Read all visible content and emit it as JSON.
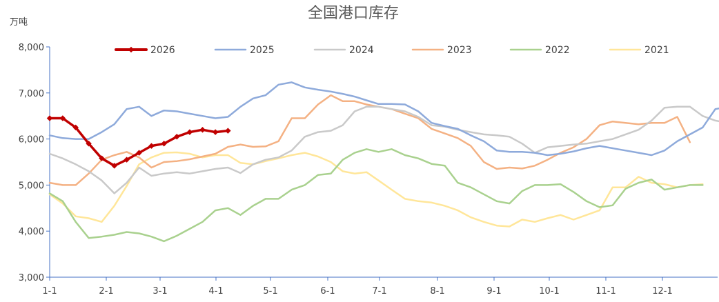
{
  "chart_data": {
    "type": "line",
    "title": "全国港口库存",
    "unit_label": "万吨",
    "ylim": [
      3000,
      8000
    ],
    "y_ticks": [
      {
        "value": 3000,
        "label": "3,000"
      },
      {
        "value": 4000,
        "label": "4,000"
      },
      {
        "value": 5000,
        "label": "5,000"
      },
      {
        "value": 6000,
        "label": "6,000"
      },
      {
        "value": 7000,
        "label": "7,000"
      },
      {
        "value": 8000,
        "label": "8,000"
      }
    ],
    "x_ticks": [
      "1-1",
      "2-1",
      "3-1",
      "4-1",
      "5-1",
      "6-1",
      "7-1",
      "8-1",
      "9-1",
      "10-1",
      "11-1",
      "12-1"
    ],
    "grid": false,
    "legend_position": "top",
    "series": [
      {
        "name": "2026",
        "color": "#c00000",
        "markers": true,
        "values": [
          6450,
          6450,
          6250,
          5900,
          5580,
          5420,
          5550,
          5700,
          5850,
          5900,
          6050,
          6150,
          6200,
          6150,
          6180
        ]
      },
      {
        "name": "2025",
        "color": "#8eaadb",
        "values": [
          6080,
          6020,
          6000,
          6000,
          6150,
          6320,
          6650,
          6700,
          6500,
          6620,
          6600,
          6550,
          6500,
          6450,
          6480,
          6700,
          6880,
          6950,
          7180,
          7230,
          7120,
          7070,
          7030,
          6980,
          6920,
          6840,
          6760,
          6760,
          6750,
          6600,
          6350,
          6280,
          6220,
          6080,
          5950,
          5750,
          5720,
          5720,
          5700,
          5650,
          5680,
          5730,
          5800,
          5850,
          5800,
          5750,
          5700,
          5650,
          5750,
          5950,
          6100,
          6250,
          6650,
          6700,
          6780,
          6580
        ]
      },
      {
        "name": "2024",
        "color": "#c9c9c9",
        "values": [
          5680,
          5580,
          5450,
          5300,
          5100,
          4820,
          5050,
          5380,
          5200,
          5250,
          5280,
          5250,
          5300,
          5350,
          5380,
          5260,
          5450,
          5550,
          5600,
          5750,
          6050,
          6150,
          6180,
          6300,
          6600,
          6700,
          6700,
          6650,
          6600,
          6480,
          6300,
          6270,
          6200,
          6150,
          6100,
          6080,
          6050,
          5900,
          5700,
          5820,
          5850,
          5880,
          5900,
          5950,
          6000,
          6100,
          6200,
          6400,
          6680,
          6700,
          6700,
          6500,
          6400,
          6350,
          6280
        ]
      },
      {
        "name": "2023",
        "color": "#f4b183",
        "values": [
          5050,
          5000,
          5000,
          5250,
          5550,
          5650,
          5720,
          5600,
          5380,
          5500,
          5520,
          5560,
          5620,
          5680,
          5830,
          5880,
          5830,
          5840,
          5950,
          6450,
          6450,
          6750,
          6950,
          6820,
          6820,
          6750,
          6700,
          6650,
          6550,
          6450,
          6220,
          6120,
          6020,
          5850,
          5500,
          5350,
          5380,
          5360,
          5420,
          5550,
          5700,
          5820,
          6000,
          6300,
          6380,
          6350,
          6320,
          6350,
          6350,
          6480,
          5930
        ]
      },
      {
        "name": "2022",
        "color": "#a9d18e",
        "values": [
          4820,
          4650,
          4200,
          3850,
          3880,
          3920,
          3980,
          3950,
          3880,
          3780,
          3900,
          4050,
          4200,
          4450,
          4500,
          4350,
          4550,
          4700,
          4700,
          4900,
          5000,
          5220,
          5250,
          5550,
          5700,
          5780,
          5720,
          5780,
          5650,
          5580,
          5460,
          5420,
          5050,
          4950,
          4800,
          4650,
          4600,
          4870,
          5000,
          5000,
          5020,
          4850,
          4650,
          4520,
          4560,
          4920,
          5050,
          5120,
          4900,
          4950,
          5000,
          5000
        ]
      },
      {
        "name": "2021",
        "color": "#ffe699",
        "values": [
          4800,
          4600,
          4320,
          4280,
          4200,
          4550,
          4980,
          5450,
          5600,
          5700,
          5710,
          5680,
          5600,
          5650,
          5650,
          5480,
          5450,
          5520,
          5580,
          5650,
          5700,
          5620,
          5500,
          5300,
          5250,
          5280,
          5100,
          4900,
          4700,
          4650,
          4620,
          4550,
          4450,
          4300,
          4200,
          4120,
          4100,
          4250,
          4200,
          4280,
          4350,
          4250,
          4350,
          4450,
          4950,
          4950,
          5180,
          5050,
          5020,
          4950,
          5000,
          5020
        ]
      }
    ]
  }
}
